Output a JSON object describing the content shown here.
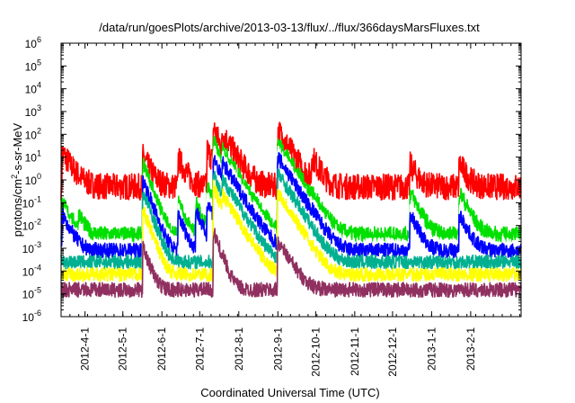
{
  "chart_data": {
    "type": "line",
    "title": "/data/run/goesPlots/archive/2013-03-13/flux/../flux/366daysMarsFluxes.txt",
    "xlabel": "Coordinated Universal Time (UTC)",
    "ylabel": "protons/cm2-s-sr-MeV",
    "ylabel_main": "protons/cm",
    "ylabel_sup": "2",
    "ylabel_rest": "-s-sr-MeV",
    "yscale": "log",
    "ylim": [
      1e-06,
      1000000.0
    ],
    "xlim": [
      "2012-03-13",
      "2013-03-13"
    ],
    "yticks": [
      {
        "value": 1e-06,
        "base": "10",
        "exp": "-6"
      },
      {
        "value": 1e-05,
        "base": "10",
        "exp": "-5"
      },
      {
        "value": 0.0001,
        "base": "10",
        "exp": "-4"
      },
      {
        "value": 0.001,
        "base": "10",
        "exp": "-3"
      },
      {
        "value": 0.01,
        "base": "10",
        "exp": "-2"
      },
      {
        "value": 0.1,
        "base": "10",
        "exp": "-1"
      },
      {
        "value": 1,
        "base": "10",
        "exp": "0"
      },
      {
        "value": 10,
        "base": "10",
        "exp": "1"
      },
      {
        "value": 100,
        "base": "10",
        "exp": "2"
      },
      {
        "value": 1000,
        "base": "10",
        "exp": "3"
      },
      {
        "value": 10000,
        "base": "10",
        "exp": "4"
      },
      {
        "value": 100000,
        "base": "10",
        "exp": "5"
      },
      {
        "value": 1000000,
        "base": "10",
        "exp": "6"
      }
    ],
    "xticks": [
      {
        "date": "2012-04-01",
        "label": "2012-4-1"
      },
      {
        "date": "2012-05-01",
        "label": "2012-5-1"
      },
      {
        "date": "2012-06-01",
        "label": "2012-6-1"
      },
      {
        "date": "2012-07-01",
        "label": "2012-7-1"
      },
      {
        "date": "2012-08-01",
        "label": "2012-8-1"
      },
      {
        "date": "2012-09-01",
        "label": "2012-9-1"
      },
      {
        "date": "2012-10-01",
        "label": "2012-10-1"
      },
      {
        "date": "2012-11-01",
        "label": "2012-11-1"
      },
      {
        "date": "2012-12-01",
        "label": "2012-12-1"
      },
      {
        "date": "2013-01-01",
        "label": "2013-1-1"
      },
      {
        "date": "2013-02-01",
        "label": "2013-2-1"
      }
    ],
    "series": [
      {
        "color": "#ff0000",
        "base": 0.5,
        "noise": 0.25,
        "events": [
          [
            "2012-03-14",
            15,
            5
          ],
          [
            "2012-05-17",
            10,
            4
          ],
          [
            "2012-06-14",
            8,
            4
          ],
          [
            "2012-07-07",
            20,
            4
          ],
          [
            "2012-07-12",
            200,
            3
          ],
          [
            "2012-07-19",
            100,
            5
          ],
          [
            "2012-09-01",
            150,
            5
          ],
          [
            "2012-09-28",
            10,
            4
          ],
          [
            "2012-12-15",
            4,
            4
          ],
          [
            "2013-01-23",
            5,
            4
          ]
        ]
      },
      {
        "color": "#00e000",
        "base": 0.004,
        "noise": 0.15,
        "events": [
          [
            "2012-03-14",
            0.1,
            4
          ],
          [
            "2012-03-27",
            0.03,
            3
          ],
          [
            "2012-05-17",
            5,
            3
          ],
          [
            "2012-06-14",
            0.1,
            3
          ],
          [
            "2012-06-28",
            0.1,
            3
          ],
          [
            "2012-07-07",
            0.5,
            4
          ],
          [
            "2012-07-12",
            50,
            3
          ],
          [
            "2012-07-19",
            20,
            5
          ],
          [
            "2012-09-01",
            50,
            5
          ],
          [
            "2012-09-28",
            0.05,
            4
          ],
          [
            "2012-12-15",
            0.3,
            4
          ],
          [
            "2013-01-23",
            0.3,
            4
          ]
        ]
      },
      {
        "color": "#ffffff",
        "base": 0.0015,
        "noise": 0.12,
        "events": [
          [
            "2012-03-14",
            0.05,
            4
          ],
          [
            "2012-05-17",
            2,
            3
          ],
          [
            "2012-06-14",
            0.05,
            3
          ],
          [
            "2012-07-07",
            0.2,
            4
          ],
          [
            "2012-07-12",
            20,
            3
          ],
          [
            "2012-07-19",
            10,
            5
          ],
          [
            "2012-09-01",
            20,
            5
          ],
          [
            "2012-09-28",
            0.02,
            4
          ],
          [
            "2012-12-15",
            0.05,
            4
          ],
          [
            "2013-01-23",
            0.05,
            4
          ]
        ]
      },
      {
        "color": "#0000ff",
        "base": 0.0008,
        "noise": 0.14,
        "events": [
          [
            "2012-03-14",
            0.03,
            4
          ],
          [
            "2012-05-17",
            1,
            3
          ],
          [
            "2012-06-14",
            0.03,
            3
          ],
          [
            "2012-06-28",
            0.05,
            3
          ],
          [
            "2012-07-07",
            0.1,
            4
          ],
          [
            "2012-07-12",
            10,
            3
          ],
          [
            "2012-07-19",
            5,
            5
          ],
          [
            "2012-09-01",
            10,
            5
          ],
          [
            "2012-09-28",
            0.01,
            4
          ],
          [
            "2012-12-15",
            0.03,
            4
          ],
          [
            "2013-01-23",
            0.03,
            4
          ]
        ]
      },
      {
        "color": "#00b090",
        "base": 0.00025,
        "noise": 0.13,
        "events": [
          [
            "2012-05-17",
            0.3,
            3
          ],
          [
            "2012-07-12",
            2,
            3
          ],
          [
            "2012-07-19",
            1,
            5
          ],
          [
            "2012-09-01",
            2,
            5
          ]
        ]
      },
      {
        "color": "#ffff00",
        "base": 7e-05,
        "noise": 0.13,
        "events": [
          [
            "2012-05-17",
            0.05,
            3
          ],
          [
            "2012-07-12",
            0.5,
            3
          ],
          [
            "2012-07-19",
            0.2,
            5
          ],
          [
            "2012-09-01",
            0.3,
            5
          ]
        ]
      },
      {
        "color": "#903060",
        "base": 1.5e-05,
        "noise": 0.14,
        "events": [
          [
            "2012-05-17",
            0.001,
            3
          ],
          [
            "2012-07-12",
            0.005,
            3
          ],
          [
            "2012-09-01",
            0.002,
            5
          ]
        ]
      }
    ]
  }
}
